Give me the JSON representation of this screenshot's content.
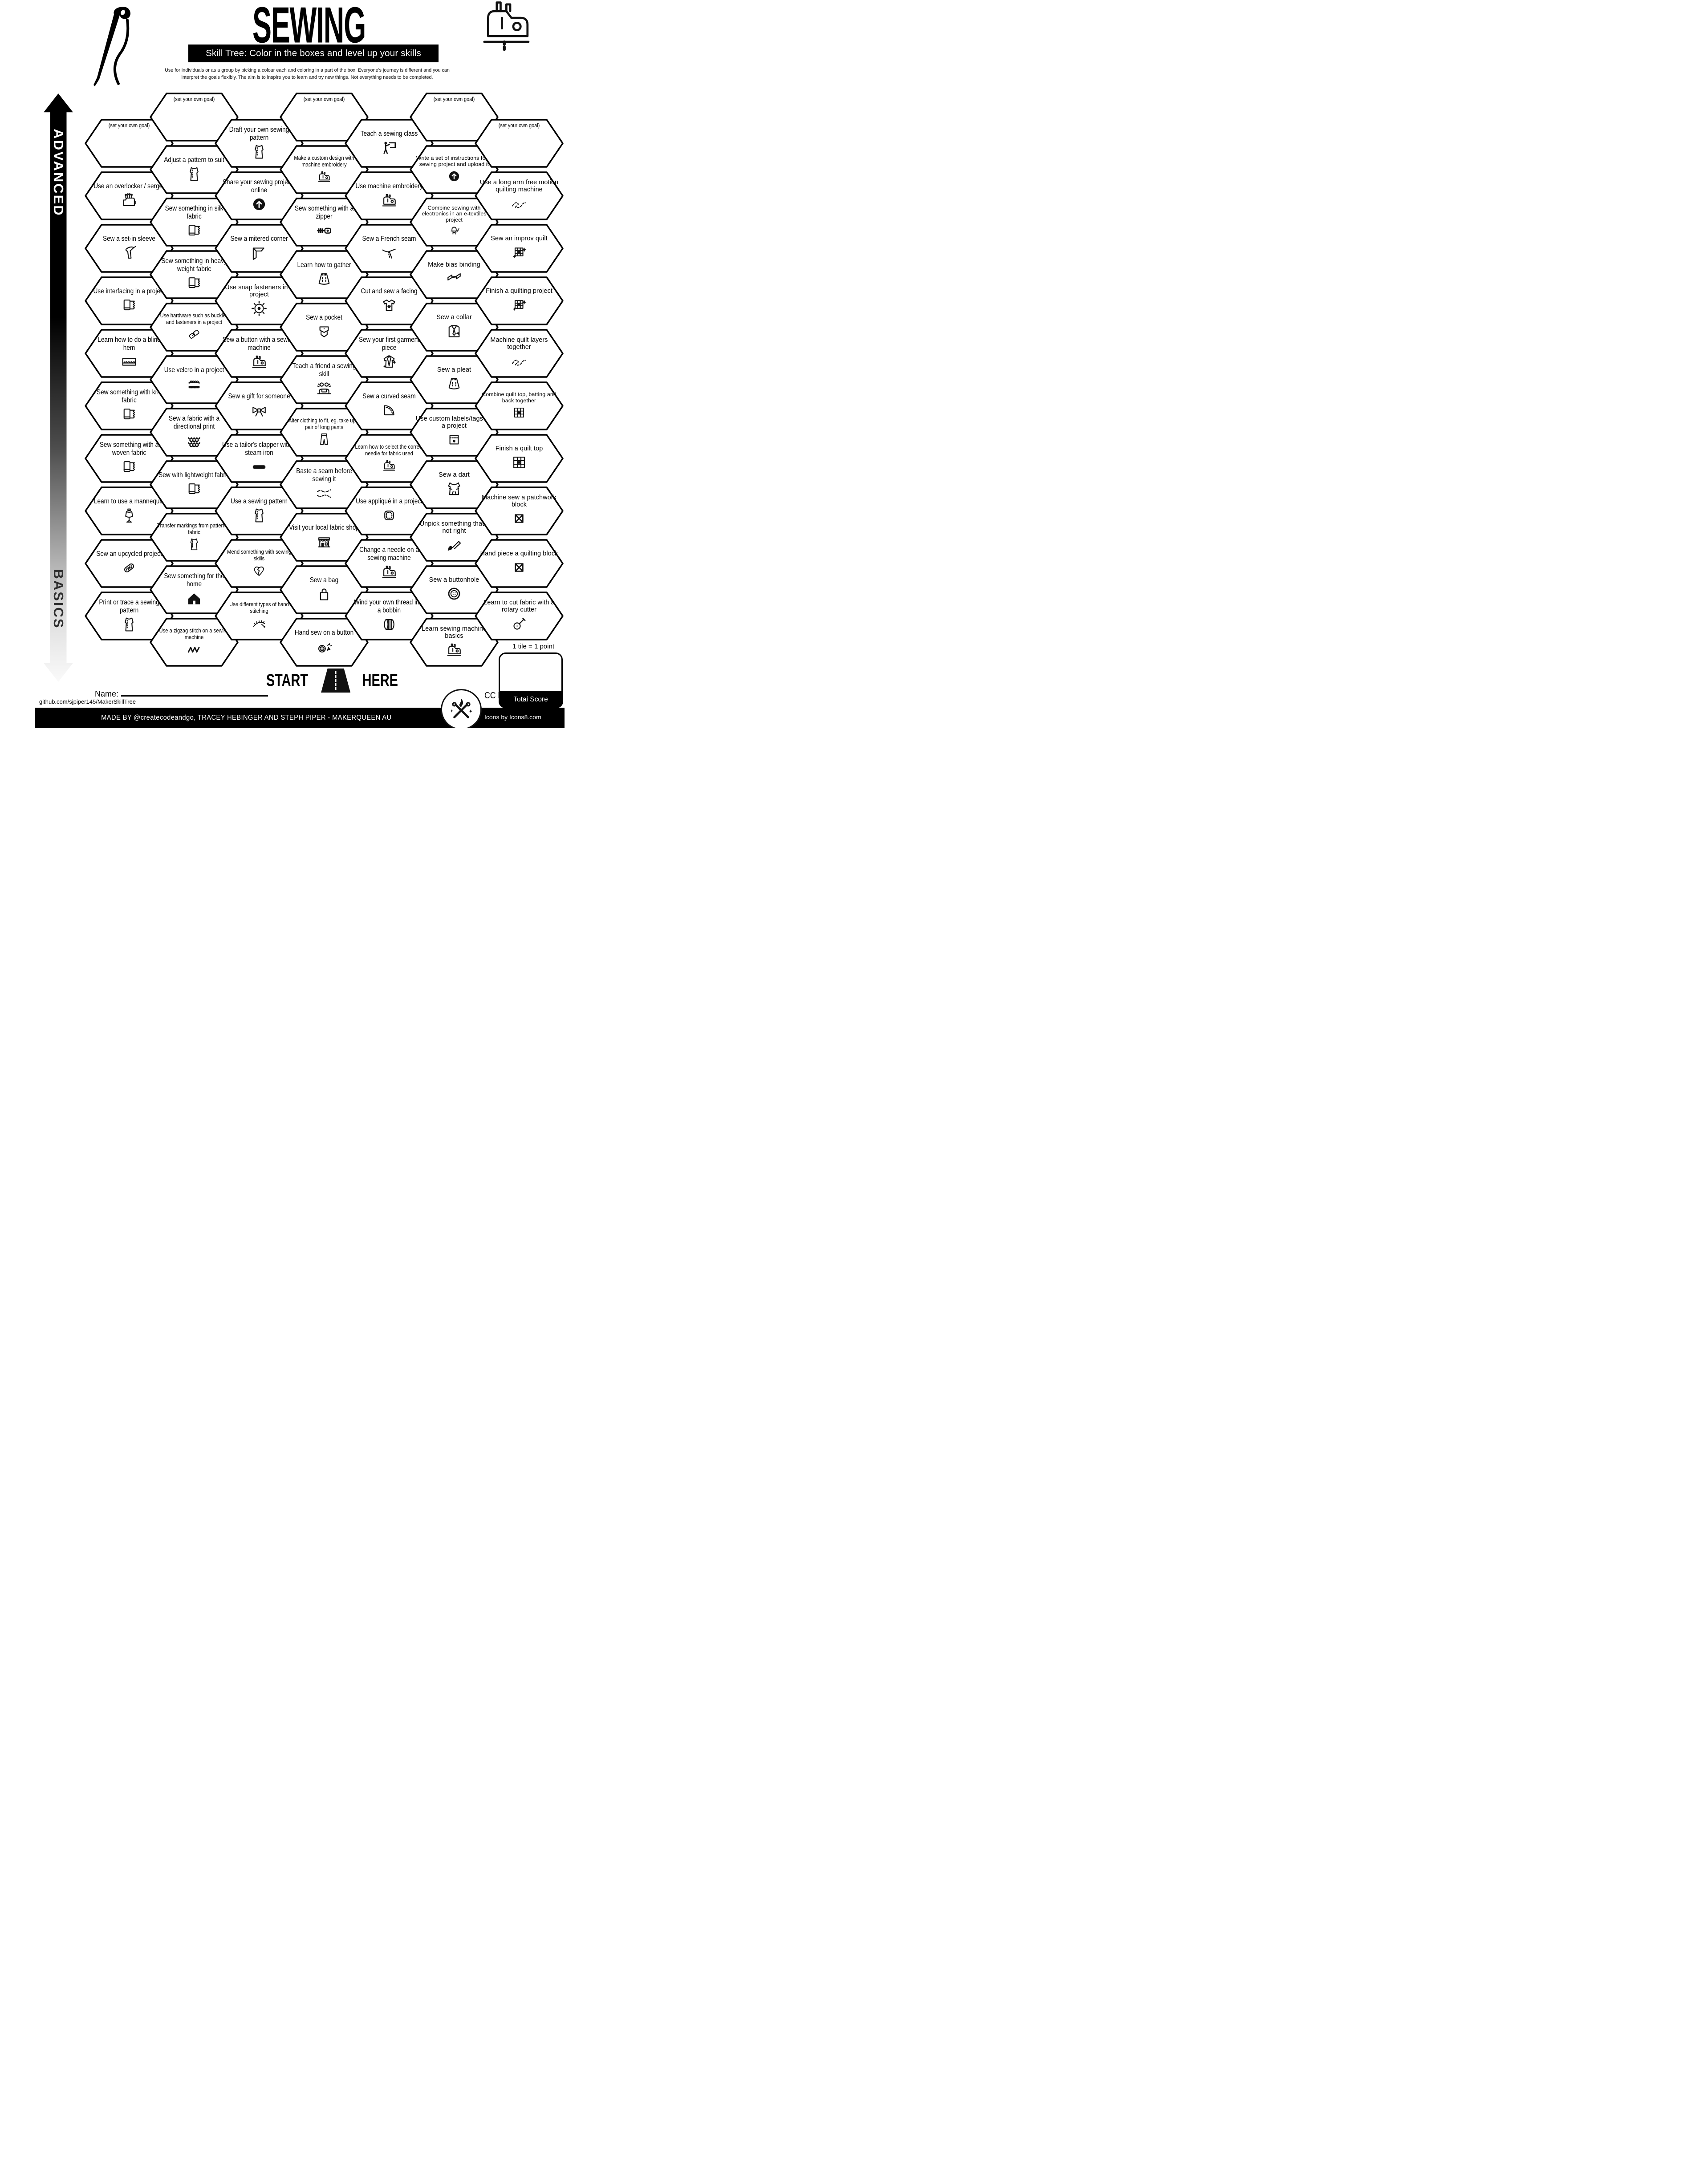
{
  "header": {
    "title": "SEWING",
    "subtitle": "Skill Tree:  Color in the boxes and level up your skills",
    "description_line1": "Use for individuals or as a group by picking a colour each and coloring in a part of the box.  Everyone's journey is different and you can",
    "description_line2": "interpret the goals flexibly.  The aim is to inspire you to learn and try new things. Not everything needs to be completed.",
    "left_icon": "needle-and-thread-icon",
    "right_icon": "sewing-machine-icon"
  },
  "axis": {
    "top": "ADVANCED",
    "bottom": "BASICS"
  },
  "columns": [
    {
      "tiles": [
        {
          "label": "(set your own goal)",
          "goal": true
        },
        {
          "label": "Use an overlocker / serger",
          "icon": "overlocker"
        },
        {
          "label": "Sew a set-in sleeve",
          "icon": "set-in-sleeve"
        },
        {
          "label": "Use interfacing in a project",
          "icon": "fabric-bolt"
        },
        {
          "label": "Learn how to do a blind hem",
          "icon": "blind-hem"
        },
        {
          "label": "Sew something with knit fabric",
          "icon": "fabric-bolt"
        },
        {
          "label": "Sew something with a woven fabric",
          "icon": "fabric-bolt"
        },
        {
          "label": "Learn to use a mannequin",
          "icon": "mannequin"
        },
        {
          "label": "Sew an upcycled project",
          "icon": "upcycle-patch"
        },
        {
          "label": "Print or trace a sewing pattern",
          "icon": "pattern-piece"
        }
      ]
    },
    {
      "tiles": [
        {
          "label": "(set your own goal)",
          "goal": true
        },
        {
          "label": "Adjust a pattern to suit",
          "icon": "pattern-piece"
        },
        {
          "label": "Sew something in silk fabric",
          "icon": "fabric-bolt"
        },
        {
          "label": "Sew something in heavy weight fabric",
          "icon": "fabric-bolt"
        },
        {
          "label": "Use hardware such as buckles and fasteners in a project",
          "icon": "buckle",
          "small": true
        },
        {
          "label": "Use velcro in a project",
          "icon": "velcro"
        },
        {
          "label": "Sew a fabric with a directional print",
          "icon": "directional-print"
        },
        {
          "label": "Sew with lightweight fabric",
          "icon": "fabric-bolt"
        },
        {
          "label": "Transfer markings from pattern to fabric",
          "icon": "pattern-piece",
          "small": true
        },
        {
          "label": "Sew something for the home",
          "icon": "house"
        },
        {
          "label": "Use a zigzag stitch on a sewing machine",
          "icon": "zigzag-stitch",
          "small": true
        }
      ]
    },
    {
      "tiles": [
        {
          "label": "Draft your own sewing pattern",
          "icon": "pattern-piece"
        },
        {
          "label": "Share your sewing projects online",
          "icon": "upload"
        },
        {
          "label": "Sew a mitered corner",
          "icon": "mitered-corner"
        },
        {
          "label": "Use snap fasteners in a project",
          "icon": "snap-fastener",
          "alt": true
        },
        {
          "label": "Sew a button with a sewing machine",
          "icon": "sewing-machine"
        },
        {
          "label": "Sew a gift for someone",
          "icon": "gift-bow"
        },
        {
          "label": "Use a tailor's clapper with a steam iron",
          "icon": "tailors-clapper"
        },
        {
          "label": "Use a sewing pattern",
          "icon": "pattern-piece"
        },
        {
          "label": "Mend something with sewing skills",
          "icon": "mended-heart",
          "small": true
        },
        {
          "label": "Use different types of hand stitching",
          "icon": "hand-stitching",
          "small": true
        }
      ]
    },
    {
      "tiles": [
        {
          "label": "(set your own goal)",
          "goal": true
        },
        {
          "label": "Make a custom design with machine embroidery",
          "icon": "sewing-machine",
          "small": true
        },
        {
          "label": "Sew something with a zipper",
          "icon": "zipper"
        },
        {
          "label": "Learn how to gather",
          "icon": "gathered-skirt"
        },
        {
          "label": "Sew a pocket",
          "icon": "pocket"
        },
        {
          "label": "Teach a friend a sewing skill",
          "icon": "teach-friends"
        },
        {
          "label": "Alter clothing to fit, eg. take up a pair of long pants",
          "icon": "pants",
          "small": true
        },
        {
          "label": "Baste a seam before sewing it",
          "icon": "baste-stitches"
        },
        {
          "label": "Visit your local fabric shop",
          "icon": "fabric-shop"
        },
        {
          "label": "Sew a bag",
          "icon": "bag"
        },
        {
          "label": "Hand sew on a button",
          "icon": "button-celebration"
        }
      ]
    },
    {
      "tiles": [
        {
          "label": "Teach a sewing class",
          "icon": "teach-class"
        },
        {
          "label": "Use machine embroidery",
          "icon": "sewing-machine"
        },
        {
          "label": "Sew a French seam",
          "icon": "french-seam"
        },
        {
          "label": "Cut and sew a facing",
          "icon": "facing-tshirt"
        },
        {
          "label": "Sew your first garment piece",
          "icon": "garment-sparkle"
        },
        {
          "label": "Sew a curved seam",
          "icon": "curved-seam"
        },
        {
          "label": "Learn how to select the correct needle for fabric used",
          "icon": "sewing-machine",
          "small": true
        },
        {
          "label": "Use appliqué in a project",
          "icon": "applique-patch"
        },
        {
          "label": "Change a needle on a sewing machine",
          "icon": "sewing-machine"
        },
        {
          "label": "Wind your own thread into a bobbin",
          "icon": "bobbin"
        }
      ]
    },
    {
      "tiles": [
        {
          "label": "(set your own goal)",
          "goal": true
        },
        {
          "label": "Write a set of instructions for a sewing project and upload it",
          "icon": "upload",
          "small": true,
          "alt": true
        },
        {
          "label": "Combine sewing with electronics in an e-textiles project",
          "icon": "led-etextiles",
          "small": true,
          "alt": true
        },
        {
          "label": "Make bias binding",
          "icon": "bias-binding",
          "alt": true
        },
        {
          "label": "Sew a collar",
          "icon": "collar",
          "alt": true
        },
        {
          "label": "Sew a pleat",
          "icon": "pleated-skirt",
          "alt": true
        },
        {
          "label": "Use custom labels/tags for a project",
          "icon": "label-tag",
          "alt": true
        },
        {
          "label": "Sew a dart",
          "icon": "dart-bodice",
          "alt": true
        },
        {
          "label": "Unpick something that's not right",
          "icon": "seam-ripper",
          "alt": true
        },
        {
          "label": "Sew a buttonhole",
          "icon": "buttonhole",
          "alt": true
        },
        {
          "label": "Learn sewing machine basics",
          "icon": "sewing-machine",
          "alt": true
        }
      ]
    },
    {
      "tiles": [
        {
          "label": "(set your own goal)",
          "goal": true
        },
        {
          "label": "Use a long arm free motion quilting machine",
          "icon": "free-motion-stitch",
          "alt": true
        },
        {
          "label": "Sew an improv quilt",
          "icon": "quilt-sparkle",
          "alt": true
        },
        {
          "label": "Finish a quilting project",
          "icon": "quilt-sparkle",
          "alt": true
        },
        {
          "label": "Machine quilt layers together",
          "icon": "free-motion-stitch",
          "alt": true
        },
        {
          "label": "Combine quilt top, batting and back together",
          "icon": "quilt-block",
          "small": true,
          "alt": true
        },
        {
          "label": "Finish a quilt top",
          "icon": "quilt-block",
          "alt": true
        },
        {
          "label": "Machine sew a patchwork block",
          "icon": "patchwork-block",
          "alt": true
        },
        {
          "label": "Hand piece a quilting block",
          "icon": "patchwork-block",
          "alt": true
        },
        {
          "label": "Learn to cut fabric with a rotary cutter",
          "icon": "rotary-cutter",
          "alt": true
        }
      ]
    }
  ],
  "footer": {
    "start_label": "START",
    "here_label": "HERE",
    "name_label": "Name:",
    "repo_url": "github.com/sjpiper145/MakerSkillTree",
    "credit": "MADE BY @createcodeandgo, TRACEY HEBINGER  AND STEPH PIPER  -  MAKERQUEEN AU",
    "license": "CC BY-NC-SA 4.0",
    "icons_credit": "Icons by Icons8.com",
    "points_note": "1 tile = 1 point",
    "total_score_label": "Total Score"
  },
  "colors": {
    "ink": "#000000",
    "paper": "#ffffff",
    "gradient_top": "#000000",
    "gradient_bottom": "#fafafa"
  }
}
